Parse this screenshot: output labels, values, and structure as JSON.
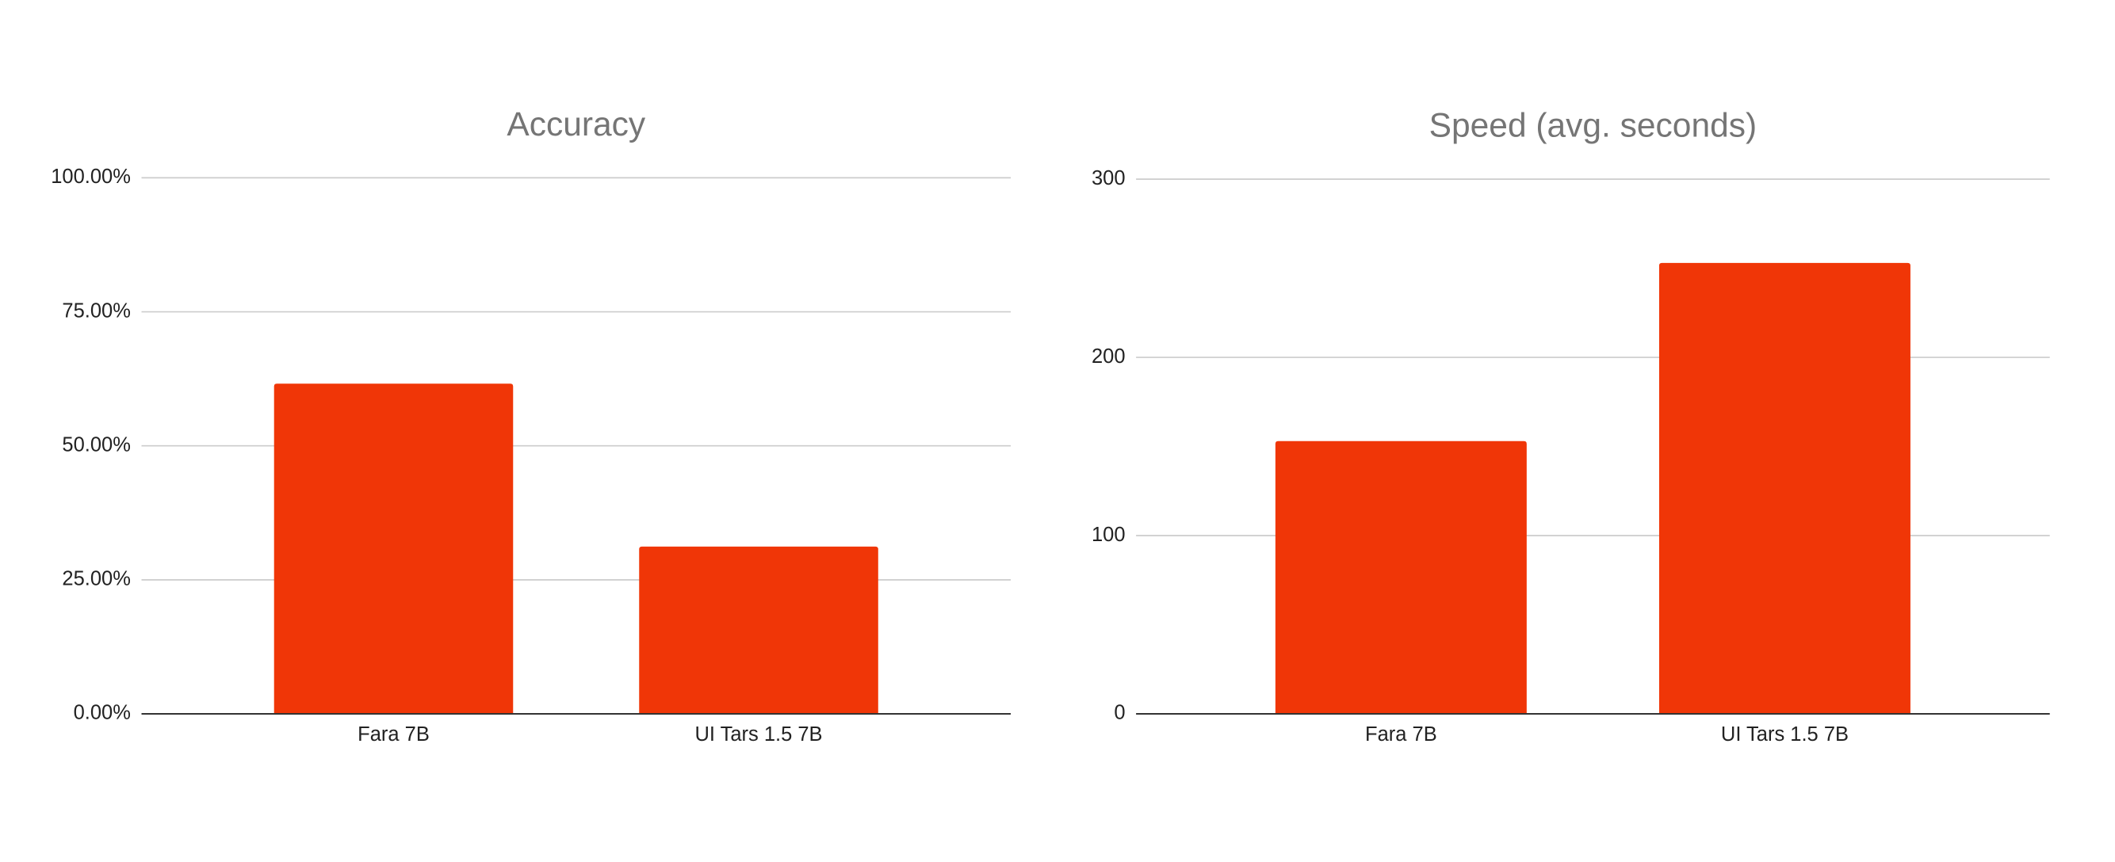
{
  "chart_data": [
    {
      "type": "bar",
      "title": "Accuracy",
      "categories": [
        "Fara 7B",
        "UI Tars 1.5 7B"
      ],
      "values": [
        61.6,
        31.2
      ],
      "color": "#f03607",
      "ylim": [
        0,
        100
      ],
      "yticks": [
        {
          "value": 0,
          "label": "0.00%"
        },
        {
          "value": 25,
          "label": "25.00%"
        },
        {
          "value": 50,
          "label": "50.00%"
        },
        {
          "value": 75,
          "label": "75.00%"
        },
        {
          "value": 100,
          "label": "100.00%"
        }
      ],
      "grid": true
    },
    {
      "type": "bar",
      "title": "Speed (avg. seconds)",
      "categories": [
        "Fara 7B",
        "UI Tars 1.5 7B"
      ],
      "values": [
        153,
        253
      ],
      "color": "#f03607",
      "ylim": [
        0,
        300
      ],
      "yticks": [
        0,
        100,
        200,
        300
      ],
      "grid": true
    }
  ]
}
